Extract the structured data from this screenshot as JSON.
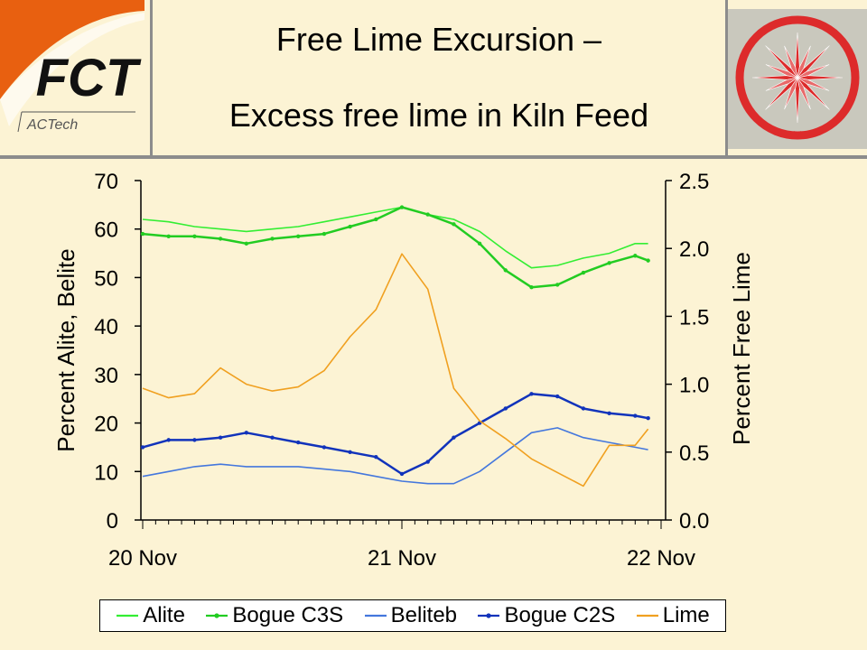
{
  "header": {
    "title_line1": "Free Lime Excursion –",
    "title_line2": "Excess free lime in Kiln Feed",
    "logo_text": "FCT",
    "logo_subtext": "ACTech"
  },
  "colors": {
    "alite": "#33ee33",
    "bogue_c3s": "#22cc22",
    "belite": "#4477dd",
    "bogue_c2s": "#1133bb",
    "lime": "#f0a020",
    "emblem_red": "#dd2b2b"
  },
  "chart_data": {
    "type": "line",
    "x_tick_labels": [
      "20 Nov",
      "21 Nov",
      "22 Nov"
    ],
    "x": [
      0,
      0.1,
      0.2,
      0.3,
      0.4,
      0.5,
      0.6,
      0.7,
      0.8,
      0.9,
      1.0,
      1.1,
      1.2,
      1.3,
      1.4,
      1.5,
      1.6,
      1.7,
      1.8,
      1.9,
      1.95
    ],
    "ylabel_left": "Percent Alite, Belite",
    "ylabel_right": "Percent Free Lime",
    "ylim_left": [
      0,
      70
    ],
    "ylim_right": [
      0,
      2.5
    ],
    "yticks_left": [
      "0",
      "10",
      "20",
      "30",
      "40",
      "50",
      "60",
      "70"
    ],
    "yticks_right": [
      "0.0",
      "0.5",
      "1.0",
      "1.5",
      "2.0",
      "2.5"
    ],
    "legend_position": "bottom",
    "grid": false,
    "series": [
      {
        "name": "Alite",
        "axis": "left",
        "values": [
          62,
          61.5,
          60.5,
          60,
          59.5,
          60,
          60.5,
          61.5,
          62.5,
          63.5,
          64.5,
          63,
          62,
          59.5,
          55.5,
          52,
          52.5,
          54,
          55,
          57,
          57
        ]
      },
      {
        "name": "Bogue C3S",
        "axis": "left",
        "values": [
          59,
          58.5,
          58.5,
          58,
          57,
          58,
          58.5,
          59,
          60.5,
          62,
          64.5,
          63,
          61,
          57,
          51.5,
          48,
          48.5,
          51,
          53,
          54.5,
          53.5
        ]
      },
      {
        "name": "Beliteb",
        "axis": "left",
        "values": [
          9,
          10,
          11,
          11.5,
          11,
          11,
          11,
          10.5,
          10,
          9,
          8,
          7.5,
          7.5,
          10,
          14,
          18,
          19,
          17,
          16,
          15,
          14.5
        ]
      },
      {
        "name": "Bogue C2S",
        "axis": "left",
        "values": [
          15,
          16.5,
          16.5,
          17,
          18,
          17,
          16,
          15,
          14,
          13,
          9.5,
          12,
          17,
          20,
          23,
          26,
          25.5,
          23,
          22,
          21.5,
          21
        ]
      },
      {
        "name": "Lime",
        "axis": "right",
        "values": [
          0.97,
          0.9,
          0.93,
          1.12,
          1.0,
          0.95,
          0.98,
          1.1,
          1.35,
          1.55,
          1.96,
          1.7,
          0.97,
          0.73,
          0.6,
          0.45,
          0.35,
          0.25,
          0.55,
          0.55,
          0.67
        ]
      }
    ]
  }
}
